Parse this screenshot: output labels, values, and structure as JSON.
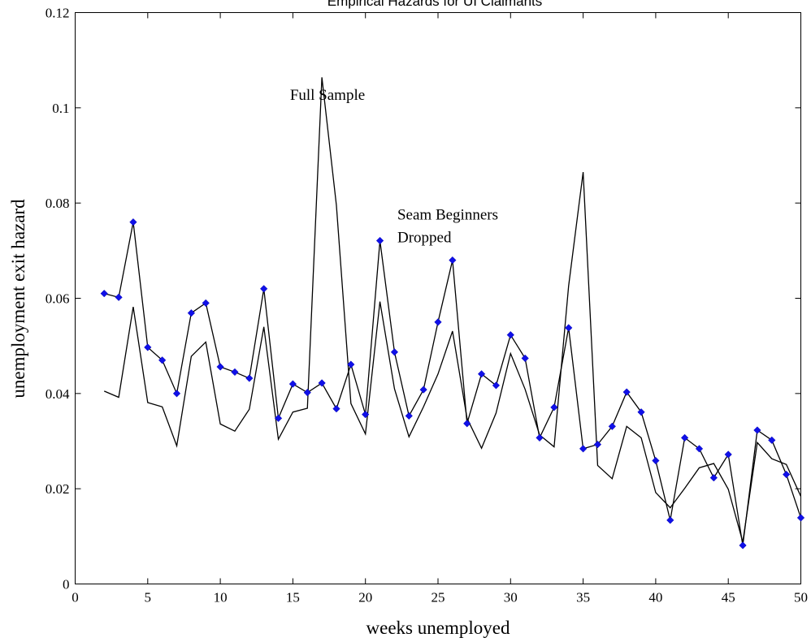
{
  "chart_data": {
    "type": "line",
    "title": "Empirical Hazards for UI Claimants",
    "xlabel": "weeks unemployed",
    "ylabel": "unemployment exit hazard",
    "xlim": [
      0,
      50
    ],
    "ylim": [
      0,
      0.12
    ],
    "xticks": [
      0,
      5,
      10,
      15,
      20,
      25,
      30,
      35,
      40,
      45,
      50
    ],
    "yticks": [
      0,
      0.02,
      0.04,
      0.06,
      0.08,
      0.1,
      0.12
    ],
    "xtick_labels": [
      "0",
      "5",
      "10",
      "15",
      "20",
      "25",
      "30",
      "35",
      "40",
      "45",
      "50"
    ],
    "ytick_labels": [
      "0",
      "0.02",
      "0.04",
      "0.06",
      "0.08",
      "0.1",
      "0.12"
    ],
    "grid": false,
    "annotations": [
      {
        "text": "Full Sample",
        "x": 14.8,
        "y": 0.1017
      },
      {
        "text": "Seam Beginners",
        "x": 22.2,
        "y": 0.0765
      },
      {
        "text": "Dropped",
        "x": 22.2,
        "y": 0.0718
      }
    ],
    "series": [
      {
        "markers": true,
        "color": "#1010e8",
        "x": [
          2,
          3,
          4,
          5,
          6,
          7,
          8,
          9,
          10,
          11,
          12,
          13,
          14,
          15,
          16,
          17,
          18,
          19,
          20,
          21,
          22,
          23,
          24,
          25,
          26,
          27,
          28,
          29,
          30,
          31,
          32,
          33,
          34,
          35,
          36,
          37,
          38,
          39,
          40,
          41,
          42,
          43,
          44,
          45,
          46,
          47,
          48,
          49,
          50
        ],
        "y": [
          0.061,
          0.0602,
          0.076,
          0.0497,
          0.047,
          0.04,
          0.0569,
          0.059,
          0.0456,
          0.0445,
          0.0432,
          0.062,
          0.0348,
          0.042,
          0.0402,
          0.0422,
          0.0368,
          0.0461,
          0.0356,
          0.0721,
          0.0487,
          0.0353,
          0.0408,
          0.055,
          0.068,
          0.0337,
          0.0441,
          0.0417,
          0.0523,
          0.0474,
          0.0307,
          0.0371,
          0.0538,
          0.0284,
          0.0293,
          0.0331,
          0.0403,
          0.0361,
          0.0259,
          0.0134,
          0.0307,
          0.0284,
          0.0223,
          0.0272,
          0.0081,
          0.0323,
          0.0302,
          0.023,
          0.0139
        ]
      },
      {
        "markers": false,
        "color": "#000000",
        "x": [
          2,
          3,
          4,
          5,
          6,
          7,
          8,
          9,
          10,
          11,
          12,
          13,
          14,
          15,
          16,
          17,
          18,
          19,
          20,
          21,
          22,
          23,
          24,
          25,
          26,
          27,
          28,
          29,
          30,
          31,
          32,
          33,
          34,
          35,
          36,
          37,
          38,
          39,
          40,
          41,
          42,
          43,
          44,
          45,
          46,
          47,
          48,
          49,
          50
        ],
        "y": [
          0.0405,
          0.0392,
          0.0582,
          0.0381,
          0.0372,
          0.029,
          0.0478,
          0.0508,
          0.0336,
          0.0321,
          0.0367,
          0.054,
          0.0304,
          0.0361,
          0.0369,
          0.1064,
          0.0795,
          0.0379,
          0.0315,
          0.0593,
          0.041,
          0.0309,
          0.0372,
          0.0441,
          0.0531,
          0.0348,
          0.0285,
          0.0359,
          0.0484,
          0.0409,
          0.0313,
          0.0288,
          0.0626,
          0.0865,
          0.0249,
          0.0221,
          0.0331,
          0.0307,
          0.0192,
          0.016,
          0.0201,
          0.0244,
          0.0253,
          0.0199,
          0.0088,
          0.0297,
          0.0263,
          0.0251,
          0.0184
        ]
      }
    ]
  }
}
